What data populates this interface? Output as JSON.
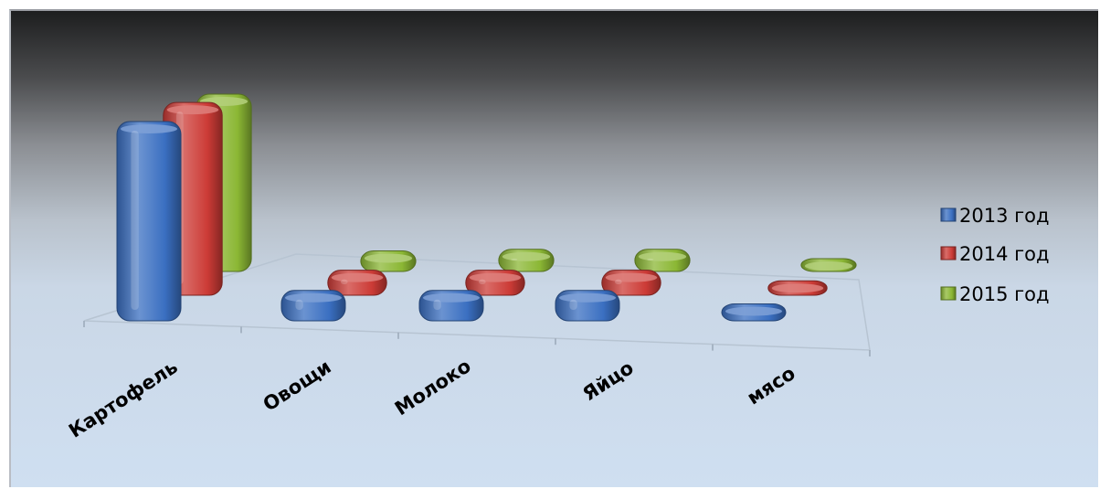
{
  "chart_data": {
    "type": "bar",
    "categories": [
      "Картофель",
      "Овощи",
      "Молоко",
      "Яйцо",
      "мясо"
    ],
    "series": [
      {
        "name": "2013 год",
        "values": [
          100,
          12,
          12,
          12,
          5
        ],
        "color": "#3a6fc1"
      },
      {
        "name": "2014 год",
        "values": [
          105,
          10,
          10,
          10,
          4
        ],
        "color": "#cc3b36"
      },
      {
        "name": "2015 год",
        "values": [
          103,
          8,
          9,
          9,
          3
        ],
        "color": "#8bb734"
      }
    ],
    "legend_position": "right",
    "view": "3d-perspective"
  }
}
